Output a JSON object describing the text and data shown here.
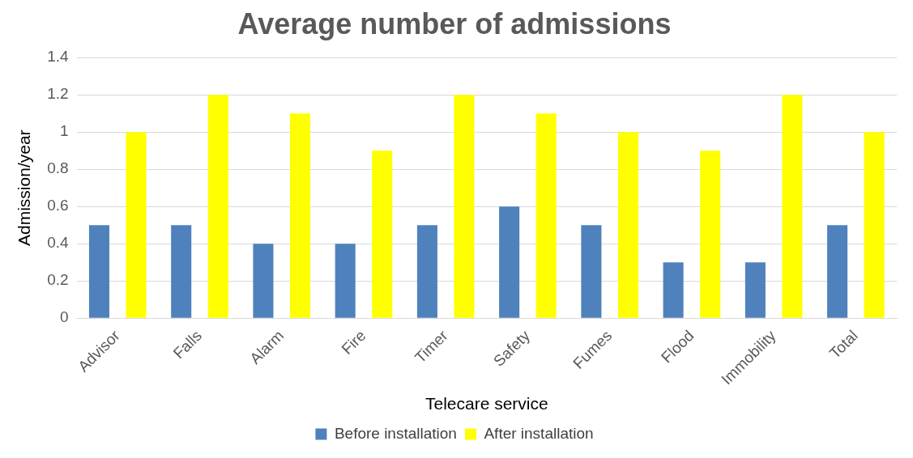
{
  "chart_data": {
    "type": "bar",
    "title": "Average number of admissions",
    "xlabel": "Telecare service",
    "ylabel": "Admission/year",
    "categories": [
      "Advisor",
      "Falls",
      "Alarm",
      "Fire",
      "Timer",
      "Safety",
      "Fumes",
      "Flood",
      "Immobility",
      "Total"
    ],
    "series": [
      {
        "name": "Before installation",
        "color": "#4f81bd",
        "values": [
          0.5,
          0.5,
          0.4,
          0.4,
          0.5,
          0.6,
          0.5,
          0.3,
          0.3,
          0.5
        ]
      },
      {
        "name": "After installation",
        "color": "#ffff00",
        "values": [
          1,
          1.2,
          1.1,
          0.9,
          1.2,
          1.1,
          1,
          0.9,
          1.2,
          1
        ]
      }
    ],
    "ylim": [
      0,
      1.4
    ],
    "yticks": [
      0,
      0.2,
      0.4,
      0.6,
      0.8,
      1,
      1.2,
      1.4
    ],
    "grid": "y",
    "legend": "bottom"
  }
}
